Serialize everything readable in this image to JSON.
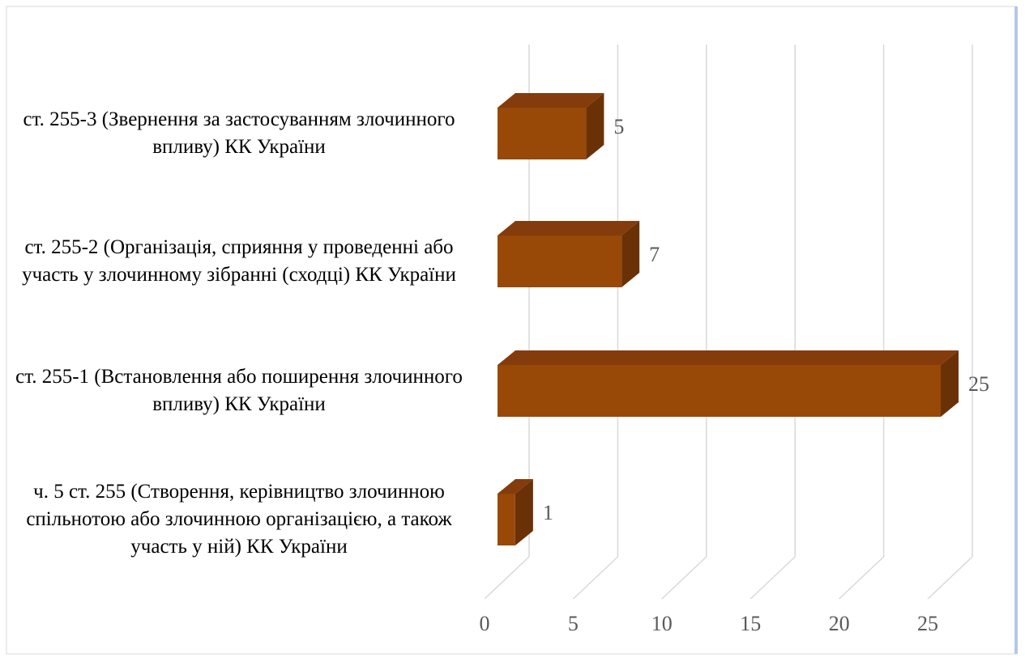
{
  "chart_data": {
    "type": "bar3d_horizontal",
    "categories": [
      "ст. 255-3 (Звернення за застосуванням злочинного впливу) КК України",
      "ст. 255-2 (Організація, сприяння у проведенні або участь у злочинному зібранні (сходці) КК України",
      "ст. 255-1 (Встановлення або поширення злочинного впливу) КК України",
      "ч. 5 ст. 255 (Створення, керівництво злочинною спільнотою або злочинною організацією, а також участь у ній) КК України"
    ],
    "values": [
      5,
      7,
      25,
      1
    ],
    "color": "#984807",
    "xlim": [
      0,
      25
    ],
    "xticks": [
      0,
      5,
      10,
      15,
      20,
      25
    ],
    "grid": true
  }
}
